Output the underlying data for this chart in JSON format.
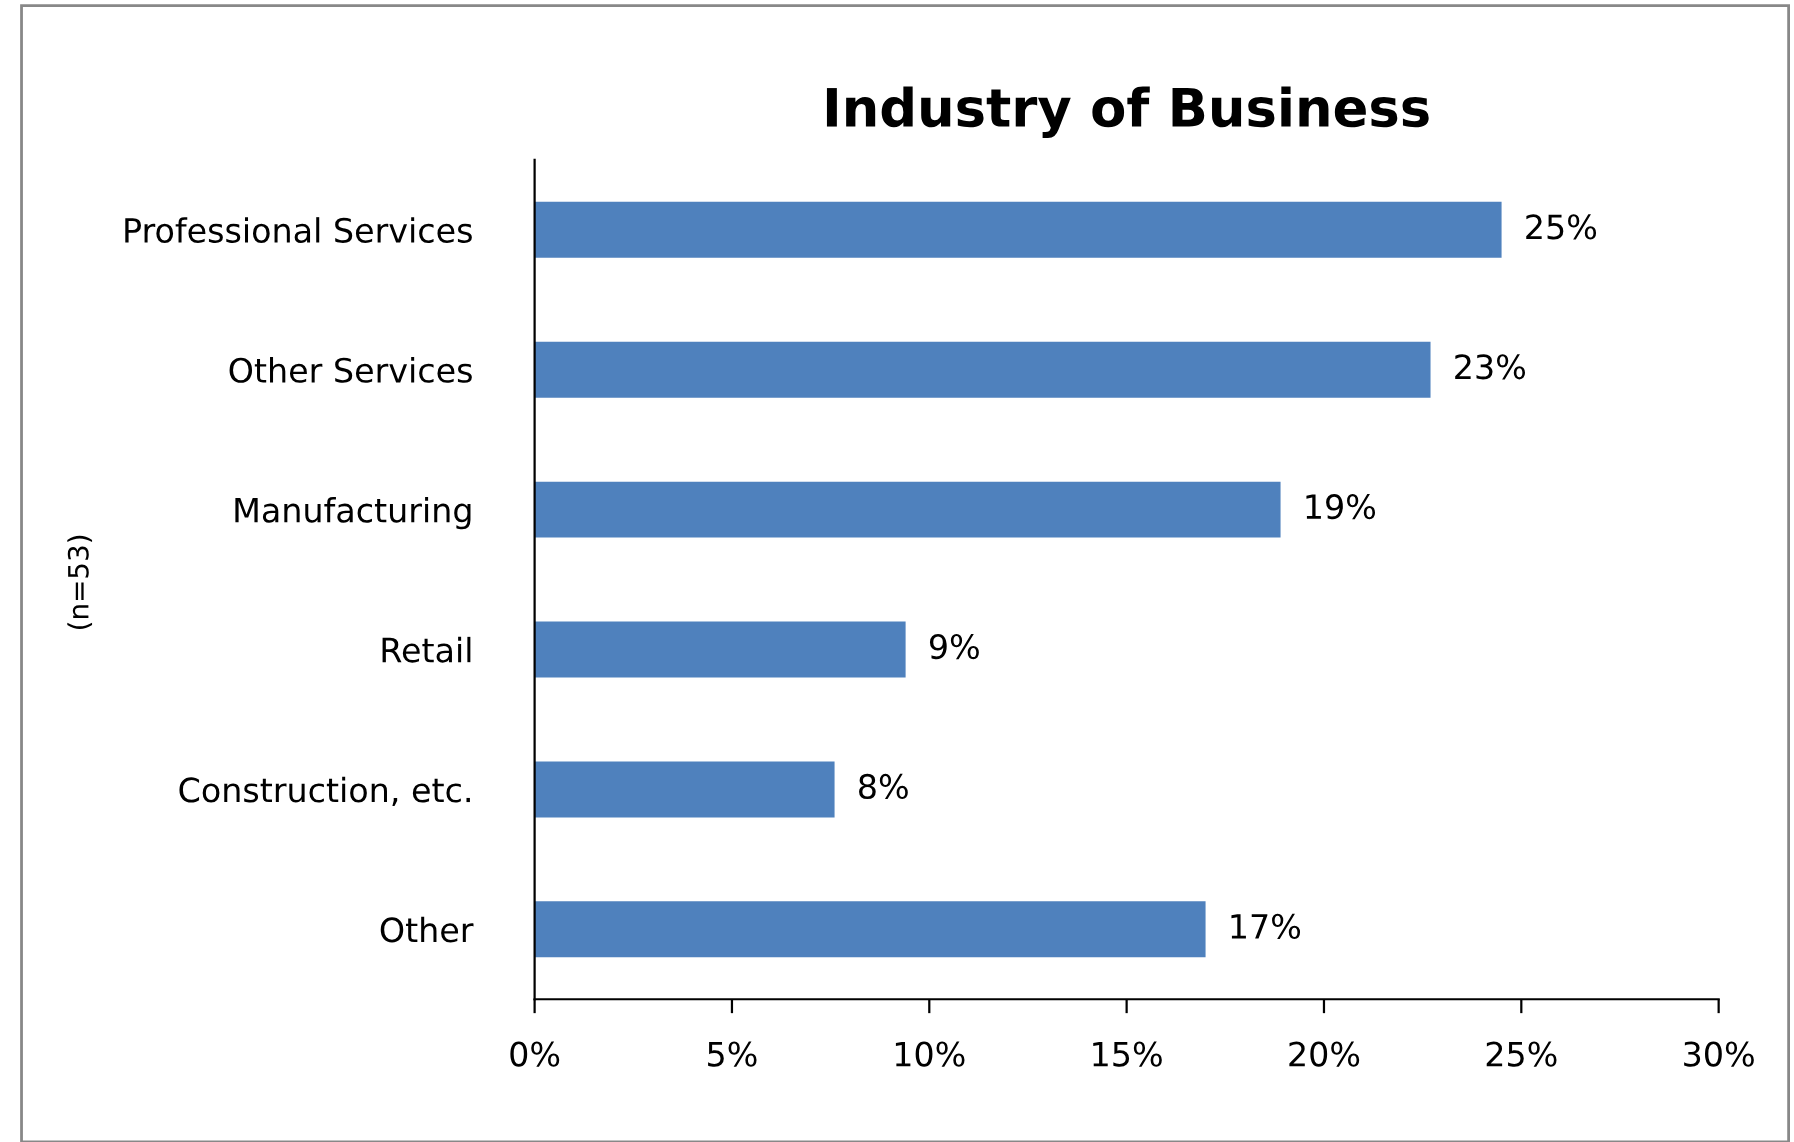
{
  "chart_data": {
    "type": "bar",
    "orientation": "horizontal",
    "title": "Industry of Business",
    "ylabel": "(n=53)",
    "categories": [
      "Professional Services",
      "Other Services",
      "Manufacturing",
      "Retail",
      "Construction, etc.",
      "Other"
    ],
    "values": [
      24.5,
      22.7,
      18.9,
      9.4,
      7.6,
      17.0
    ],
    "value_labels": [
      "25%",
      "23%",
      "19%",
      "9%",
      "8%",
      "17%"
    ],
    "color": "#4f81bd",
    "xlim": [
      0,
      30
    ],
    "xticks": [
      {
        "value": 0,
        "label": "0%"
      },
      {
        "value": 5,
        "label": "5%"
      },
      {
        "value": 10,
        "label": "10%"
      },
      {
        "value": 15,
        "label": "15%"
      },
      {
        "value": 20,
        "label": "20%"
      },
      {
        "value": 25,
        "label": "25%"
      },
      {
        "value": 30,
        "label": "30%"
      }
    ],
    "grid": false,
    "legend": false
  }
}
